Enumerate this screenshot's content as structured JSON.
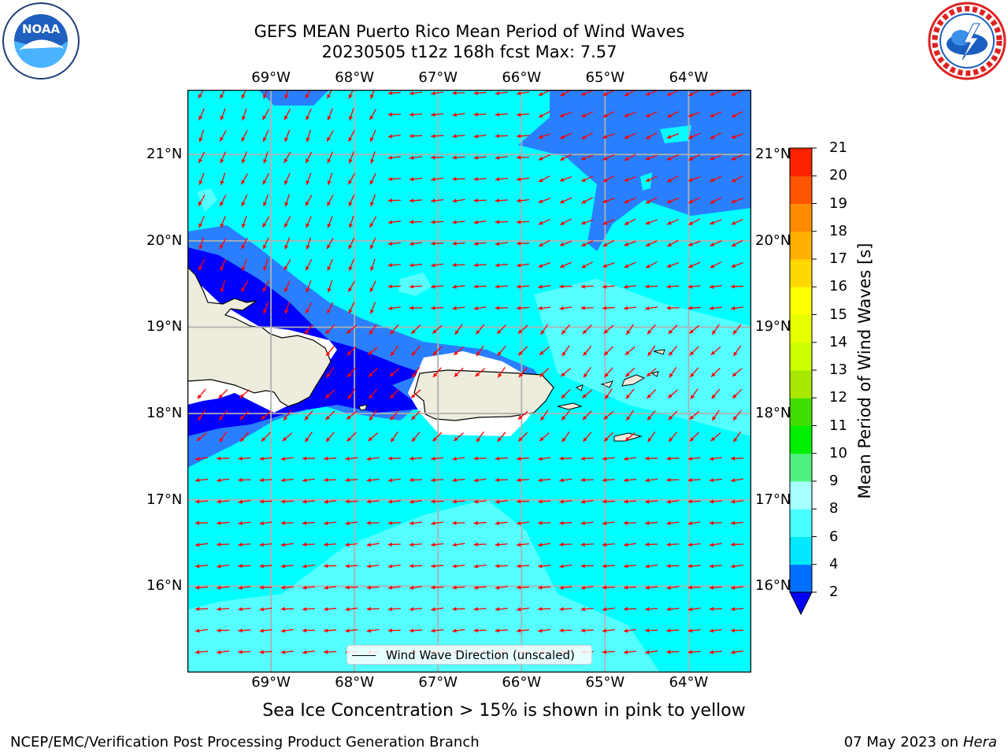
{
  "title": {
    "line1": "GEFS MEAN Puerto Rico Mean Period of Wind Waves",
    "line2": "20230505 t12z 168h fcst   Max: 7.57"
  },
  "logos": {
    "left": {
      "icon": "noaa-logo",
      "text": "NOAA"
    },
    "right": {
      "icon": "nws-logo",
      "text": "NATIONAL WEATHER SERVICE"
    }
  },
  "map": {
    "lon_labels": [
      "69°W",
      "68°W",
      "67°W",
      "66°W",
      "65°W",
      "64°W"
    ],
    "lat_labels": [
      "21°N",
      "20°N",
      "19°N",
      "18°N",
      "17°N",
      "16°N"
    ],
    "lon_range": [
      -70.0,
      -63.25
    ],
    "lat_range": [
      15.0,
      21.75
    ],
    "arrow_color": "#ff0000",
    "arrow_direction": "toward west / west-southwest",
    "land_color": "#eeecdd",
    "ocean_colors": {
      "cyan": "#00ffff",
      "light_cyan": "#55ffff",
      "blue_medium": "#2a7fff",
      "blue_dark": "#0000ff"
    }
  },
  "legend": {
    "label": "Wind Wave Direction (unscaled)"
  },
  "colorbar": {
    "label": "Mean Period of Wind Waves [s]",
    "ticks": [
      "2",
      "4",
      "6",
      "8",
      "9",
      "10",
      "11",
      "12",
      "13",
      "14",
      "15",
      "16",
      "17",
      "18",
      "19",
      "20",
      "21"
    ],
    "colors": [
      "#006fff",
      "#00e8ff",
      "#48ffff",
      "#a8ffff",
      "#50f080",
      "#00ee00",
      "#40dd00",
      "#a8e800",
      "#ccff00",
      "#e8ff00",
      "#ffff00",
      "#ffd800",
      "#ffb000",
      "#ff8c00",
      "#ff5500",
      "#ff2200",
      "#ff0000"
    ],
    "extend_color": "#0000ff"
  },
  "subtitle": "Sea Ice Concentration > 15% is shown in pink to yellow",
  "footer": {
    "left": "NCEP/EMC/Verification Post Processing Product Generation Branch",
    "date": "07 May 2023 on",
    "host": "Hera"
  }
}
